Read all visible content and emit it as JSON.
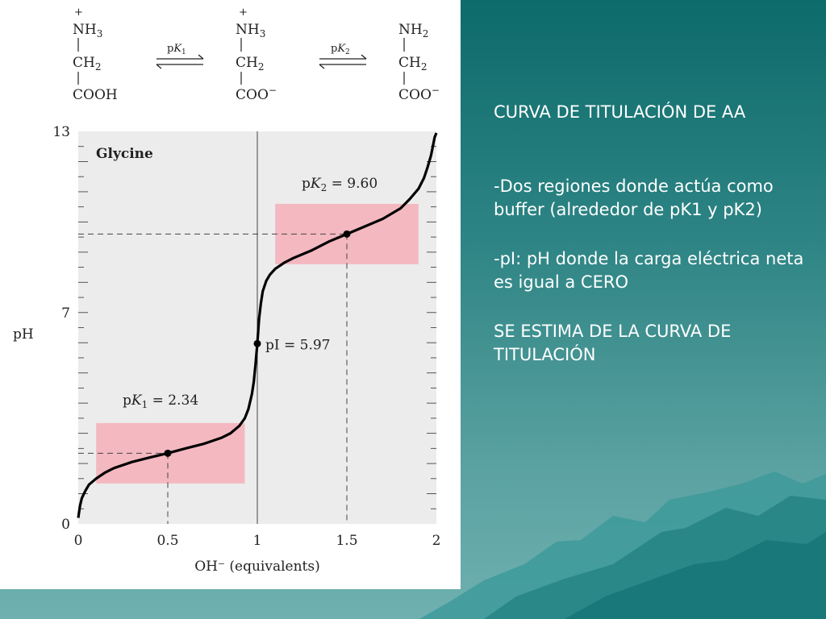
{
  "slide": {
    "title": "CURVA DE TITULACIÓN DE AA",
    "bullets": [
      "-Dos regiones donde actúa como buffer (alrededor de pK1 y pK2)",
      "-pI: pH donde la carga eléctrica neta es igual a CERO"
    ],
    "note": "SE ESTIMA DE LA CURVA DE TITULACIÓN"
  },
  "reaction": {
    "species": [
      {
        "charge_top": "+",
        "row1": "NH",
        "row1_sub": "3",
        "row2": "CH",
        "row2_sub": "2",
        "row3": "COOH",
        "row3_sup": ""
      },
      {
        "charge_top": "+",
        "row1": "NH",
        "row1_sub": "3",
        "row2": "CH",
        "row2_sub": "2",
        "row3": "COO",
        "row3_sup": "−"
      },
      {
        "charge_top": "",
        "row1": "NH",
        "row1_sub": "2",
        "row2": "CH",
        "row2_sub": "2",
        "row3": "COO",
        "row3_sup": "−"
      }
    ],
    "arrows": [
      {
        "label_main": "p",
        "label_k": "K",
        "label_sub": "1"
      },
      {
        "label_main": "p",
        "label_k": "K",
        "label_sub": "2"
      }
    ]
  },
  "chart_data": {
    "type": "line",
    "title": "Glycine",
    "xlabel": "OH⁻ (equivalents)",
    "ylabel": "pH",
    "xlim": [
      0,
      2
    ],
    "ylim": [
      0,
      13
    ],
    "x_ticks": [
      "0",
      "0.5",
      "1",
      "1.5",
      "2"
    ],
    "y_ticks": [
      "0",
      "7",
      "13"
    ],
    "x": [
      0.0,
      0.01,
      0.02,
      0.04,
      0.06,
      0.1,
      0.15,
      0.2,
      0.3,
      0.4,
      0.5,
      0.6,
      0.7,
      0.8,
      0.85,
      0.9,
      0.93,
      0.95,
      0.97,
      0.98,
      0.99,
      1.0,
      1.01,
      1.02,
      1.03,
      1.05,
      1.07,
      1.1,
      1.15,
      1.2,
      1.3,
      1.4,
      1.5,
      1.6,
      1.7,
      1.8,
      1.85,
      1.9,
      1.93,
      1.95,
      1.97,
      1.98,
      1.99,
      2.0
    ],
    "y": [
      0.2,
      0.6,
      0.85,
      1.1,
      1.3,
      1.5,
      1.7,
      1.85,
      2.05,
      2.2,
      2.34,
      2.5,
      2.65,
      2.85,
      3.0,
      3.25,
      3.5,
      3.8,
      4.3,
      4.7,
      5.3,
      5.97,
      6.8,
      7.3,
      7.7,
      8.05,
      8.25,
      8.45,
      8.65,
      8.8,
      9.05,
      9.35,
      9.6,
      9.85,
      10.1,
      10.45,
      10.75,
      11.1,
      11.45,
      11.8,
      12.2,
      12.5,
      12.8,
      12.95
    ],
    "annotations": [
      {
        "text_main": "p",
        "text_k": "K",
        "text_sub": "1",
        "text_eq": " = 2.34",
        "x": 0.5,
        "y": 2.34
      },
      {
        "text_main": "p",
        "text_k": "K",
        "text_sub": "2",
        "text_eq": " = 9.60",
        "x": 1.5,
        "y": 9.6
      },
      {
        "text_main": "pI = 5.97",
        "x": 1.0,
        "y": 5.97
      }
    ],
    "buffer_regions": [
      {
        "x_from": 0.1,
        "x_to": 0.93,
        "y_from": 1.34,
        "y_to": 3.34,
        "color": "#f4b8c0"
      },
      {
        "x_from": 1.1,
        "x_to": 1.9,
        "y_from": 8.6,
        "y_to": 10.6,
        "color": "#f4b8c0"
      }
    ],
    "grid": false,
    "plot_background": "#ececec"
  }
}
